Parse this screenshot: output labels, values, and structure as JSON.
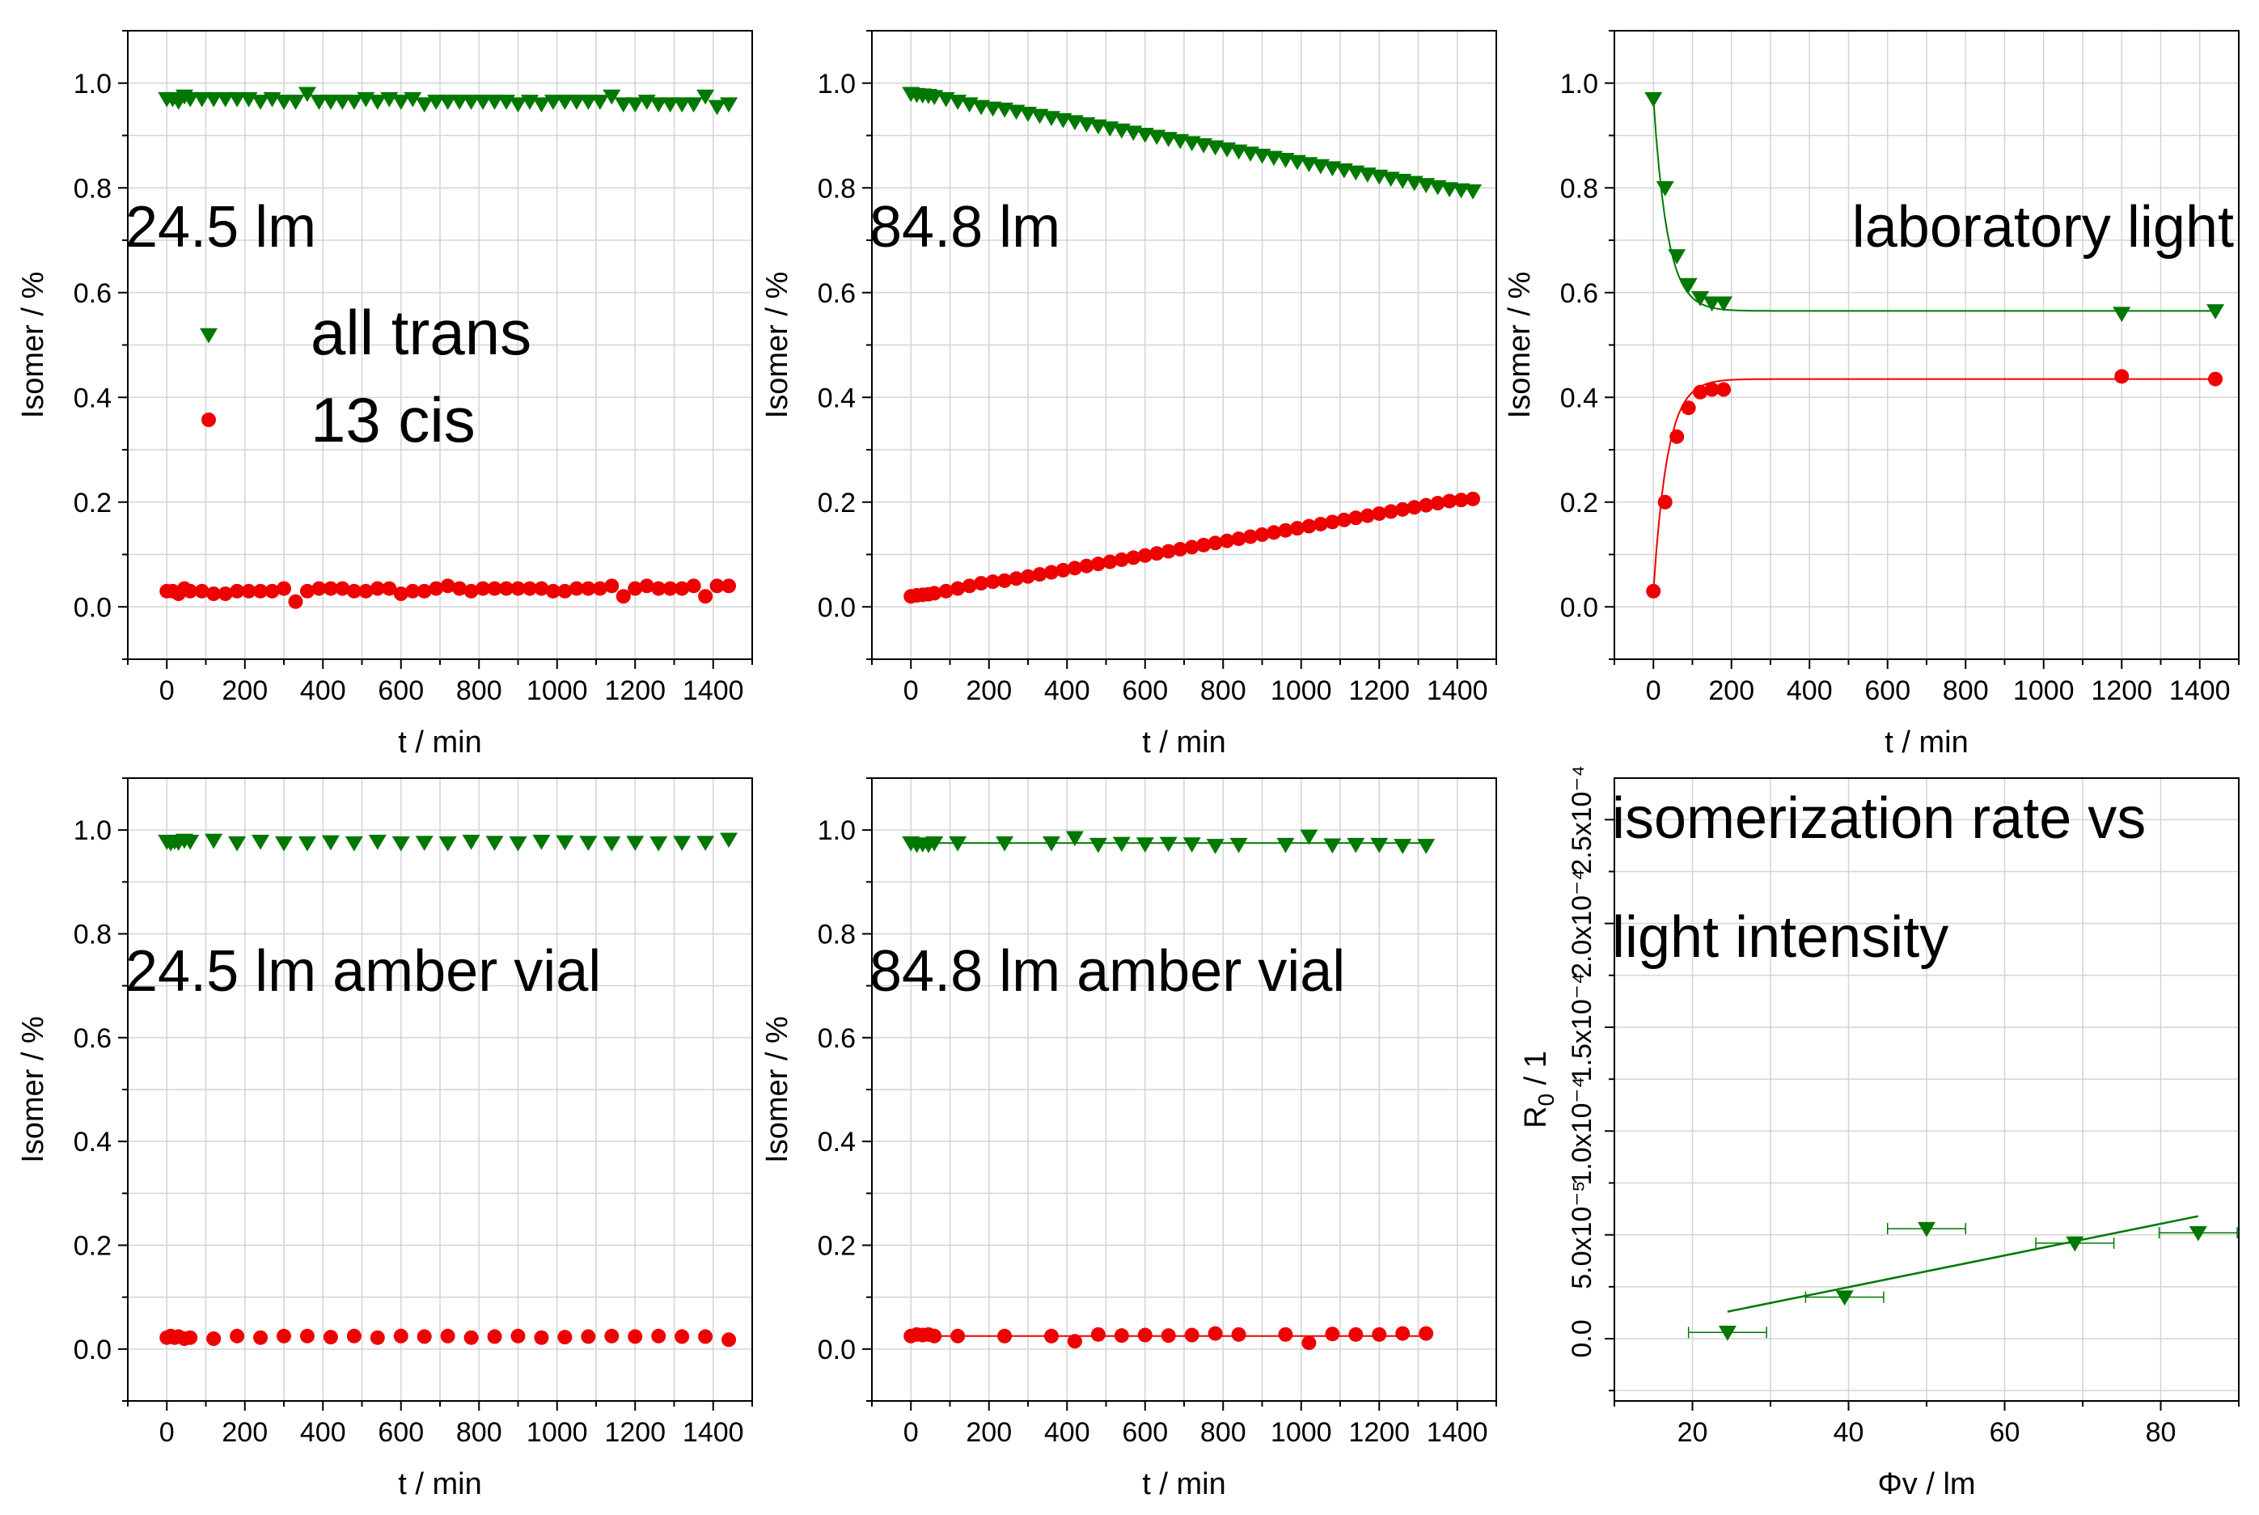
{
  "colors": {
    "trans": "#007800",
    "cis": "#ee0000",
    "grid": "#d4d4d4"
  },
  "legend": {
    "trans": "all trans",
    "cis": "13 cis"
  },
  "chart_data": [
    {
      "type": "scatter",
      "annotation": "24.5 lm",
      "xlabel": "t / min",
      "ylabel": "Isomer / %",
      "xlim": [
        -100,
        1500
      ],
      "ylim": [
        -0.1,
        1.1
      ],
      "xticks": [
        "0",
        "200",
        "400",
        "600",
        "800",
        "1000",
        "1200",
        "1400"
      ],
      "yticks": [
        "0.0",
        "0.2",
        "0.4",
        "0.6",
        "0.8",
        "1.0"
      ],
      "series": [
        {
          "name": "all trans",
          "marker": "triangle-down",
          "x": [
            0,
            15,
            30,
            45,
            60,
            90,
            120,
            150,
            180,
            210,
            240,
            270,
            300,
            330,
            360,
            390,
            420,
            450,
            480,
            510,
            540,
            570,
            600,
            630,
            660,
            690,
            720,
            750,
            780,
            810,
            840,
            870,
            900,
            930,
            960,
            990,
            1020,
            1050,
            1080,
            1110,
            1140,
            1170,
            1200,
            1230,
            1260,
            1290,
            1320,
            1350,
            1380,
            1410,
            1440
          ],
          "y": [
            0.97,
            0.97,
            0.965,
            0.975,
            0.97,
            0.97,
            0.97,
            0.97,
            0.97,
            0.97,
            0.965,
            0.97,
            0.965,
            0.965,
            0.98,
            0.965,
            0.965,
            0.965,
            0.965,
            0.97,
            0.965,
            0.97,
            0.965,
            0.97,
            0.96,
            0.965,
            0.965,
            0.965,
            0.965,
            0.965,
            0.965,
            0.965,
            0.96,
            0.965,
            0.96,
            0.965,
            0.965,
            0.965,
            0.965,
            0.965,
            0.975,
            0.96,
            0.96,
            0.965,
            0.96,
            0.96,
            0.96,
            0.96,
            0.975,
            0.955,
            0.96
          ]
        },
        {
          "name": "13 cis",
          "marker": "circle",
          "x": [
            0,
            15,
            30,
            45,
            60,
            90,
            120,
            150,
            180,
            210,
            240,
            270,
            300,
            330,
            360,
            390,
            420,
            450,
            480,
            510,
            540,
            570,
            600,
            630,
            660,
            690,
            720,
            750,
            780,
            810,
            840,
            870,
            900,
            930,
            960,
            990,
            1020,
            1050,
            1080,
            1110,
            1140,
            1170,
            1200,
            1230,
            1260,
            1290,
            1320,
            1350,
            1380,
            1410,
            1440
          ],
          "y": [
            0.03,
            0.03,
            0.025,
            0.035,
            0.03,
            0.03,
            0.025,
            0.025,
            0.03,
            0.03,
            0.03,
            0.03,
            0.035,
            0.01,
            0.03,
            0.035,
            0.035,
            0.035,
            0.03,
            0.03,
            0.035,
            0.035,
            0.025,
            0.03,
            0.03,
            0.035,
            0.04,
            0.035,
            0.03,
            0.035,
            0.035,
            0.035,
            0.035,
            0.035,
            0.035,
            0.03,
            0.03,
            0.035,
            0.035,
            0.035,
            0.04,
            0.02,
            0.035,
            0.04,
            0.035,
            0.035,
            0.035,
            0.04,
            0.02,
            0.04,
            0.04
          ]
        }
      ]
    },
    {
      "type": "scatter",
      "annotation": "84.8 lm",
      "xlabel": "t / min",
      "ylabel": "Isomer / %",
      "xlim": [
        -100,
        1500
      ],
      "ylim": [
        -0.1,
        1.1
      ],
      "xticks": [
        "0",
        "200",
        "400",
        "600",
        "800",
        "1000",
        "1200",
        "1400"
      ],
      "yticks": [
        "0.0",
        "0.2",
        "0.4",
        "0.6",
        "0.8",
        "1.0"
      ],
      "series": [
        {
          "name": "all trans",
          "marker": "triangle-down",
          "x": [
            0,
            15,
            30,
            45,
            60,
            90,
            120,
            150,
            180,
            210,
            240,
            270,
            300,
            330,
            360,
            390,
            420,
            450,
            480,
            510,
            540,
            570,
            600,
            630,
            660,
            690,
            720,
            750,
            780,
            810,
            840,
            870,
            900,
            930,
            960,
            990,
            1020,
            1050,
            1080,
            1110,
            1140,
            1170,
            1200,
            1230,
            1260,
            1290,
            1320,
            1350,
            1380,
            1410,
            1440
          ],
          "y": [
            0.98,
            0.978,
            0.977,
            0.976,
            0.974,
            0.97,
            0.965,
            0.96,
            0.955,
            0.952,
            0.95,
            0.946,
            0.942,
            0.938,
            0.934,
            0.93,
            0.926,
            0.922,
            0.918,
            0.914,
            0.91,
            0.906,
            0.902,
            0.898,
            0.894,
            0.89,
            0.886,
            0.882,
            0.878,
            0.874,
            0.87,
            0.866,
            0.862,
            0.858,
            0.854,
            0.85,
            0.846,
            0.842,
            0.838,
            0.834,
            0.83,
            0.826,
            0.822,
            0.818,
            0.814,
            0.81,
            0.806,
            0.802,
            0.798,
            0.796,
            0.794
          ]
        },
        {
          "name": "13 cis",
          "marker": "circle",
          "x": [
            0,
            15,
            30,
            45,
            60,
            90,
            120,
            150,
            180,
            210,
            240,
            270,
            300,
            330,
            360,
            390,
            420,
            450,
            480,
            510,
            540,
            570,
            600,
            630,
            660,
            690,
            720,
            750,
            780,
            810,
            840,
            870,
            900,
            930,
            960,
            990,
            1020,
            1050,
            1080,
            1110,
            1140,
            1170,
            1200,
            1230,
            1260,
            1290,
            1320,
            1350,
            1380,
            1410,
            1440
          ],
          "y": [
            0.02,
            0.022,
            0.023,
            0.024,
            0.026,
            0.03,
            0.035,
            0.04,
            0.045,
            0.048,
            0.05,
            0.054,
            0.058,
            0.062,
            0.066,
            0.07,
            0.074,
            0.078,
            0.082,
            0.086,
            0.09,
            0.094,
            0.098,
            0.102,
            0.106,
            0.11,
            0.114,
            0.118,
            0.122,
            0.126,
            0.13,
            0.134,
            0.138,
            0.142,
            0.146,
            0.15,
            0.154,
            0.158,
            0.162,
            0.166,
            0.17,
            0.174,
            0.178,
            0.182,
            0.186,
            0.19,
            0.194,
            0.198,
            0.202,
            0.204,
            0.206
          ]
        }
      ]
    },
    {
      "type": "scatter",
      "annotation": "laboratory light",
      "xlabel": "t / min",
      "ylabel": "Isomer / %",
      "xlim": [
        -100,
        1500
      ],
      "ylim": [
        -0.1,
        1.1
      ],
      "xticks": [
        "0",
        "200",
        "400",
        "600",
        "800",
        "1000",
        "1200",
        "1400"
      ],
      "yticks": [
        "0.0",
        "0.2",
        "0.4",
        "0.6",
        "0.8",
        "1.0"
      ],
      "series": [
        {
          "name": "all trans",
          "marker": "triangle-down",
          "x": [
            0,
            30,
            60,
            90,
            120,
            150,
            180,
            1200,
            1440
          ],
          "y": [
            0.97,
            0.8,
            0.67,
            0.615,
            0.59,
            0.58,
            0.58,
            0.56,
            0.565
          ],
          "fit": {
            "c": 0.565,
            "a": 0.405,
            "tau": 36
          }
        },
        {
          "name": "13 cis",
          "marker": "circle",
          "x": [
            0,
            30,
            60,
            90,
            120,
            150,
            180,
            1200,
            1440
          ],
          "y": [
            0.03,
            0.2,
            0.325,
            0.38,
            0.41,
            0.415,
            0.415,
            0.44,
            0.435
          ],
          "fit": {
            "c": 0.435,
            "a": -0.405,
            "tau": 36
          }
        }
      ]
    },
    {
      "type": "scatter",
      "annotation": "24.5 lm amber vial",
      "xlabel": "t / min",
      "ylabel": "Isomer / %",
      "xlim": [
        -100,
        1500
      ],
      "ylim": [
        -0.1,
        1.1
      ],
      "xticks": [
        "0",
        "200",
        "400",
        "600",
        "800",
        "1000",
        "1200",
        "1400"
      ],
      "yticks": [
        "0.0",
        "0.2",
        "0.4",
        "0.6",
        "0.8",
        "1.0"
      ],
      "series": [
        {
          "name": "all trans",
          "marker": "triangle-down",
          "x": [
            0,
            10,
            20,
            30,
            45,
            60,
            120,
            180,
            240,
            300,
            360,
            420,
            480,
            540,
            600,
            660,
            720,
            780,
            840,
            900,
            960,
            1020,
            1080,
            1140,
            1200,
            1260,
            1320,
            1380,
            1440
          ],
          "y": [
            0.978,
            0.975,
            0.978,
            0.976,
            0.98,
            0.978,
            0.98,
            0.975,
            0.978,
            0.975,
            0.975,
            0.977,
            0.975,
            0.978,
            0.975,
            0.976,
            0.975,
            0.978,
            0.976,
            0.975,
            0.978,
            0.977,
            0.976,
            0.975,
            0.976,
            0.975,
            0.976,
            0.976,
            0.982
          ]
        },
        {
          "name": "13 cis",
          "marker": "circle",
          "x": [
            0,
            10,
            20,
            30,
            45,
            60,
            120,
            180,
            240,
            300,
            360,
            420,
            480,
            540,
            600,
            660,
            720,
            780,
            840,
            900,
            960,
            1020,
            1080,
            1140,
            1200,
            1260,
            1320,
            1380,
            1440
          ],
          "y": [
            0.022,
            0.025,
            0.022,
            0.024,
            0.02,
            0.022,
            0.02,
            0.025,
            0.022,
            0.025,
            0.025,
            0.023,
            0.025,
            0.022,
            0.025,
            0.024,
            0.025,
            0.022,
            0.024,
            0.025,
            0.022,
            0.023,
            0.024,
            0.025,
            0.024,
            0.025,
            0.024,
            0.024,
            0.018
          ]
        }
      ]
    },
    {
      "type": "scatter",
      "annotation": "84.8 lm amber vial",
      "xlabel": "t / min",
      "ylabel": "Isomer / %",
      "xlim": [
        -100,
        1500
      ],
      "ylim": [
        -0.1,
        1.1
      ],
      "xticks": [
        "0",
        "200",
        "400",
        "600",
        "800",
        "1000",
        "1200",
        "1400"
      ],
      "yticks": [
        "0.0",
        "0.2",
        "0.4",
        "0.6",
        "0.8",
        "1.0"
      ],
      "series": [
        {
          "name": "all trans",
          "marker": "triangle-down",
          "x": [
            0,
            15,
            30,
            45,
            60,
            120,
            240,
            360,
            420,
            480,
            540,
            600,
            660,
            720,
            780,
            840,
            960,
            1020,
            1080,
            1140,
            1200,
            1260,
            1320
          ],
          "y": [
            0.975,
            0.972,
            0.973,
            0.972,
            0.975,
            0.975,
            0.975,
            0.975,
            0.985,
            0.972,
            0.974,
            0.973,
            0.974,
            0.973,
            0.97,
            0.972,
            0.972,
            0.988,
            0.971,
            0.972,
            0.972,
            0.97,
            0.97
          ],
          "fit": {
            "c": 0.975,
            "a": 0,
            "tau": 1
          }
        },
        {
          "name": "13 cis",
          "marker": "circle",
          "x": [
            0,
            15,
            30,
            45,
            60,
            120,
            240,
            360,
            420,
            480,
            540,
            600,
            660,
            720,
            780,
            840,
            960,
            1020,
            1080,
            1140,
            1200,
            1260,
            1320
          ],
          "y": [
            0.025,
            0.028,
            0.027,
            0.028,
            0.025,
            0.025,
            0.025,
            0.025,
            0.015,
            0.028,
            0.026,
            0.027,
            0.026,
            0.027,
            0.03,
            0.028,
            0.028,
            0.012,
            0.029,
            0.028,
            0.028,
            0.03,
            0.03
          ],
          "fit": {
            "c": 0.025,
            "a": 0,
            "tau": 1
          }
        }
      ]
    },
    {
      "type": "scatter",
      "annotation_lines": [
        "isomerization rate vs",
        "light intensity"
      ],
      "xlabel": "Φv / lm",
      "ylabel": "R0 / 1",
      "ylabel_main": "R",
      "ylabel_sub": "0",
      "ylabel_rest": " / 1",
      "xlim": [
        10,
        90
      ],
      "ylim": [
        -3e-05,
        0.00027
      ],
      "xticks": [
        "20",
        "40",
        "60",
        "80"
      ],
      "yticks": [
        "0.0",
        "5.0x10⁻⁵",
        "1.0x10⁻⁴",
        "1.5x10⁻⁴",
        "2.0x10⁻⁴",
        "2.5x10⁻⁴"
      ],
      "series": [
        {
          "name": "R0",
          "marker": "triangle-down",
          "x": [
            24.5,
            39.5,
            50,
            69,
            84.8
          ],
          "y": [
            3e-06,
            2e-05,
            5e-05,
            4.5e-05,
            5.2e-05
          ],
          "xerr": [
            5,
            5,
            5,
            5,
            5
          ],
          "y_display": [
            3e-06,
            2e-05,
            5.3e-05,
            4.6e-05,
            5.1e-05
          ]
        }
      ],
      "fit_line": {
        "x": [
          24.5,
          84.8
        ],
        "y": [
          1.3e-05,
          5.9e-05
        ]
      }
    }
  ]
}
